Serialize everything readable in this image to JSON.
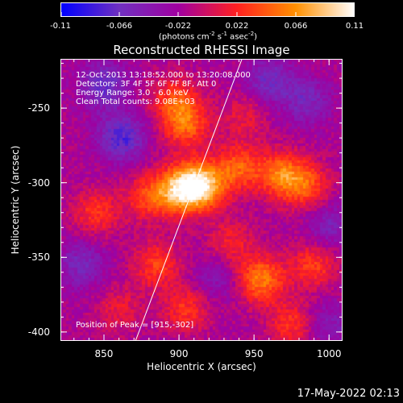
{
  "chart_data": {
    "type": "heatmap",
    "title": "Reconstructed RHESSI Image",
    "xlabel": "Heliocentric X (arcsec)",
    "ylabel": "Heliocentric Y (arcsec)",
    "xlim": [
      821,
      1009
    ],
    "ylim": [
      -406,
      -217
    ],
    "x_ticks": [
      850,
      900,
      950,
      1000
    ],
    "y_ticks": [
      -250,
      -300,
      -350,
      -400
    ],
    "colorbar": {
      "range": [
        -0.11,
        0.11
      ],
      "ticks": [
        "-0.11",
        "-0.066",
        "-0.022",
        "0.022",
        "0.066",
        "0.11"
      ],
      "unit_parts": [
        "(photons cm",
        "-2",
        " s",
        "-1",
        " asec",
        "-2",
        ")"
      ],
      "colormap": [
        "#0000ff",
        "#7030c0",
        "#a000a0",
        "#ff2020",
        "#ff9000",
        "#ffffff"
      ]
    },
    "annotations": [
      "12-Oct-2013 13:18:52.000 to 13:20:08.000",
      "Detectors: 3F 4F 5F 6F 7F 8F, Att 0",
      "Energy Range: 3.0 - 6.0 keV",
      "Clean    Total counts: 9.08E+03"
    ],
    "peak_label": "Position of Peak = [915,-302]",
    "peak": [
      915,
      -302
    ],
    "limb_line": [
      [
        871,
        -406
      ],
      [
        942,
        -217
      ]
    ],
    "sources": [
      {
        "x": 915,
        "y": -302,
        "v": 0.11
      },
      {
        "x": 900,
        "y": -305,
        "v": 0.085
      },
      {
        "x": 905,
        "y": -262,
        "v": 0.06
      },
      {
        "x": 898,
        "y": -245,
        "v": 0.055
      },
      {
        "x": 940,
        "y": -290,
        "v": 0.06
      },
      {
        "x": 968,
        "y": -295,
        "v": 0.07
      },
      {
        "x": 985,
        "y": -302,
        "v": 0.055
      },
      {
        "x": 880,
        "y": -310,
        "v": 0.05
      },
      {
        "x": 845,
        "y": -320,
        "v": 0.045
      },
      {
        "x": 885,
        "y": -355,
        "v": 0.05
      },
      {
        "x": 905,
        "y": -385,
        "v": 0.045
      },
      {
        "x": 955,
        "y": -365,
        "v": 0.075
      },
      {
        "x": 990,
        "y": -355,
        "v": 0.05
      },
      {
        "x": 975,
        "y": -395,
        "v": 0.045
      },
      {
        "x": 935,
        "y": -340,
        "v": 0.035
      },
      {
        "x": 860,
        "y": -385,
        "v": 0.03
      },
      {
        "x": 945,
        "y": -255,
        "v": 0.03
      }
    ],
    "negatives": [
      {
        "x": 850,
        "y": -235,
        "v": -0.05
      },
      {
        "x": 862,
        "y": -270,
        "v": -0.06
      },
      {
        "x": 960,
        "y": -232,
        "v": -0.045
      },
      {
        "x": 985,
        "y": -245,
        "v": -0.04
      },
      {
        "x": 1000,
        "y": -330,
        "v": -0.035
      },
      {
        "x": 835,
        "y": -355,
        "v": -0.04
      },
      {
        "x": 925,
        "y": -365,
        "v": -0.025
      },
      {
        "x": 1000,
        "y": -395,
        "v": -0.03
      }
    ],
    "background": -0.018
  },
  "footer": {
    "datestamp": "17-May-2022 02:13"
  }
}
